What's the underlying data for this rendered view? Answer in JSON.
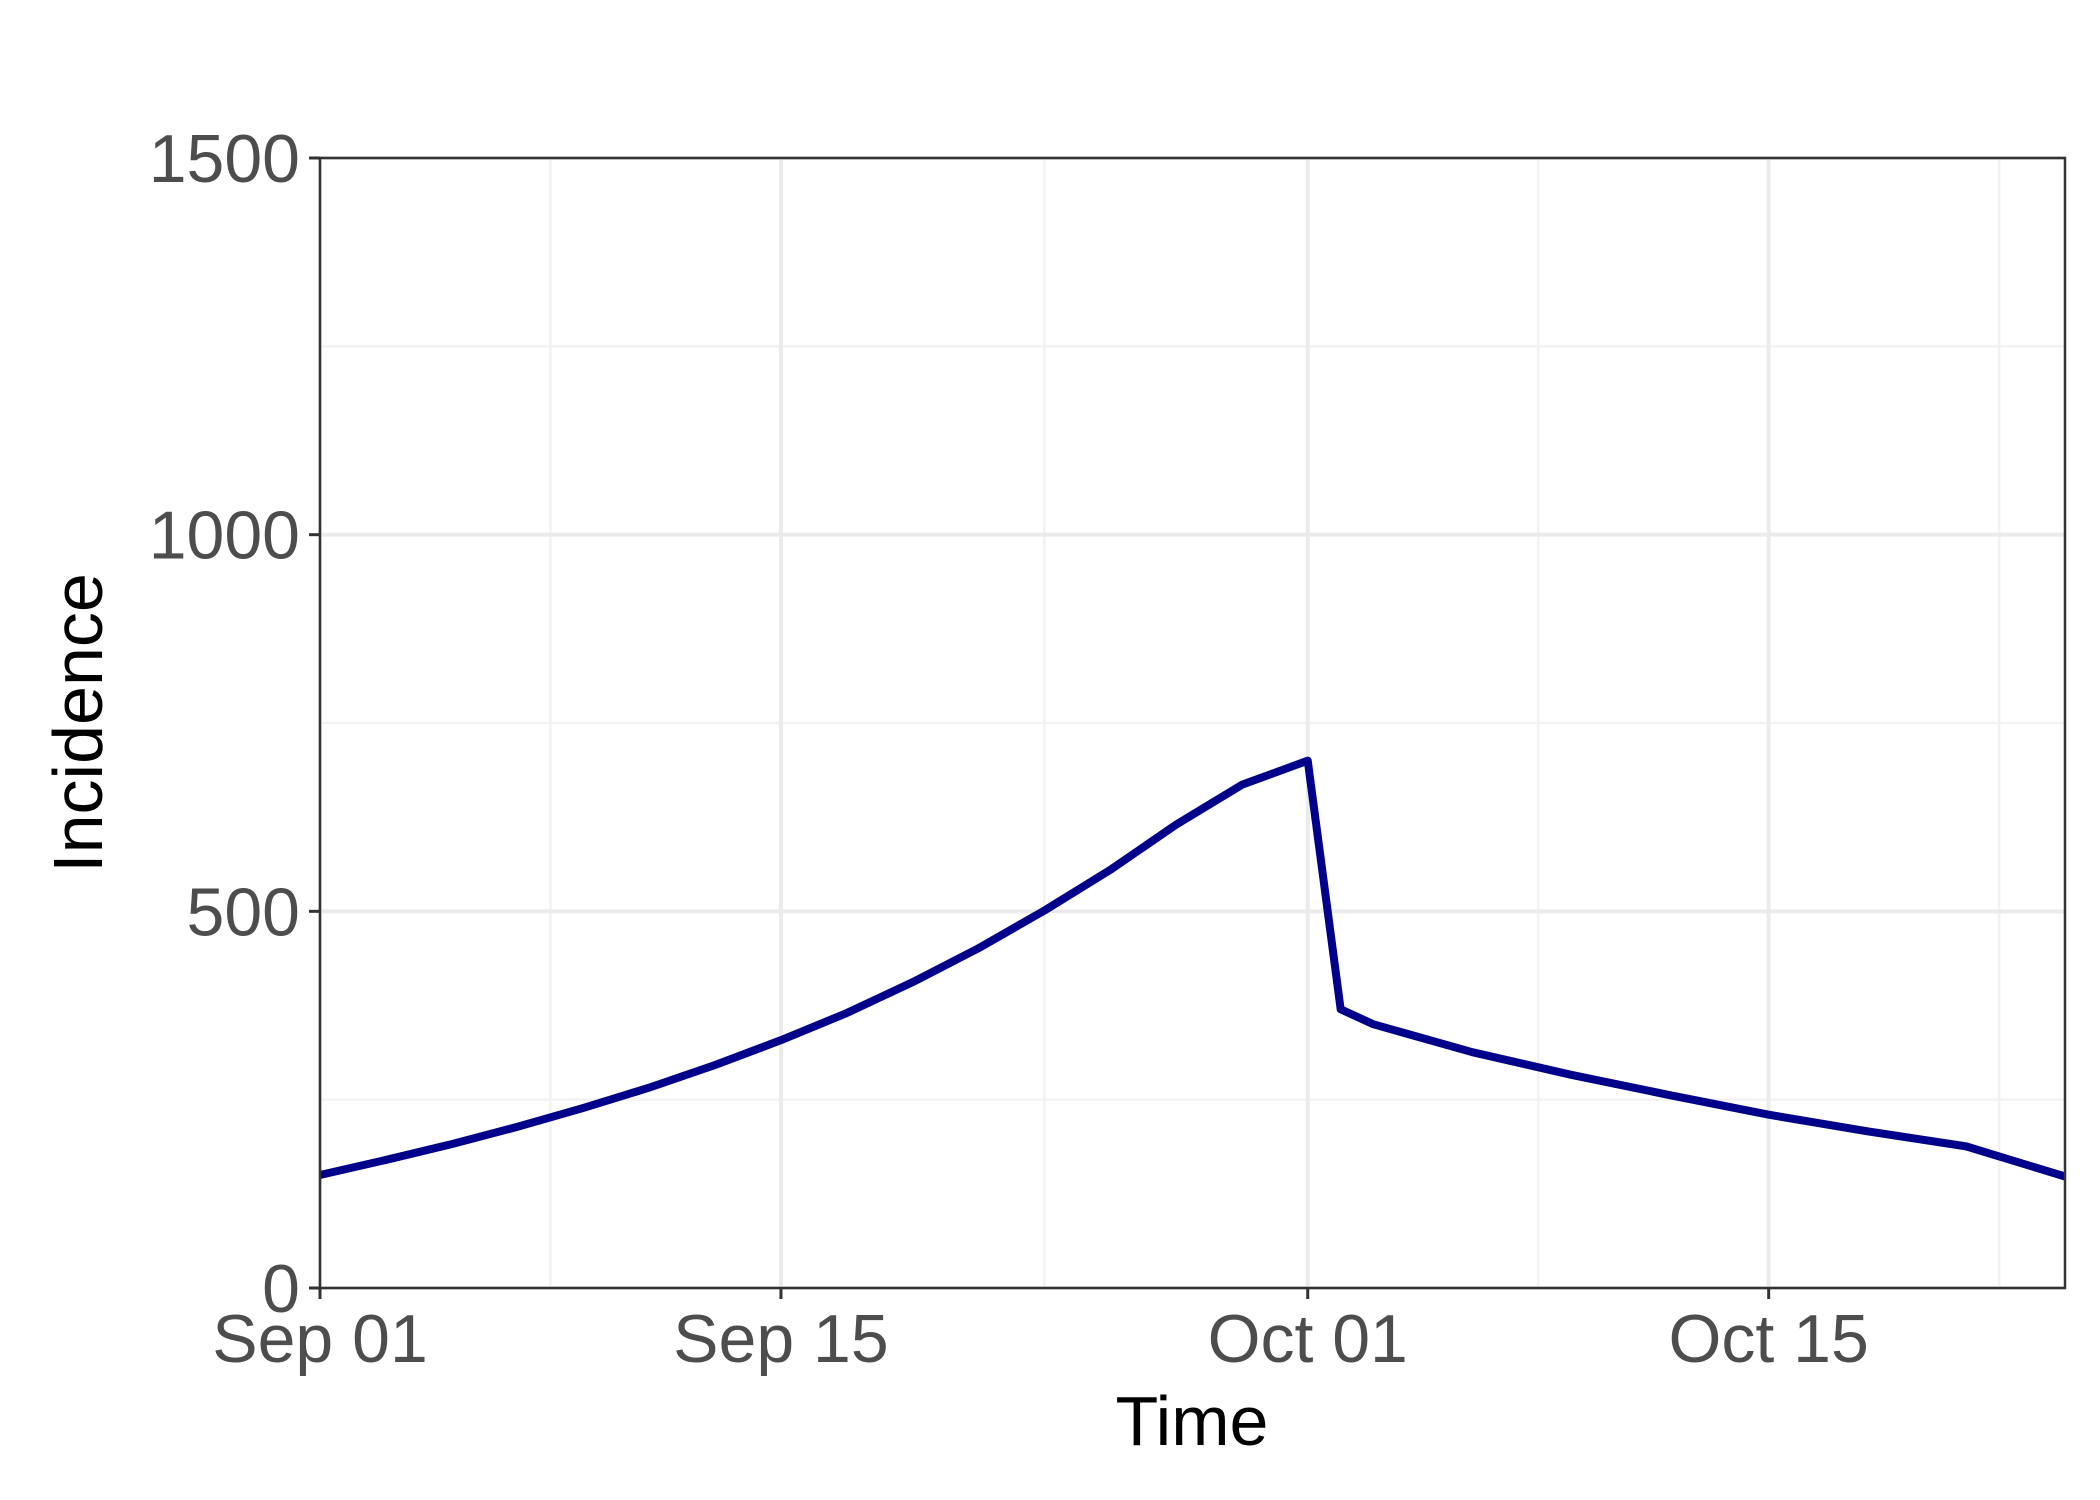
{
  "chart_data": {
    "type": "line",
    "xlabel": "Time",
    "ylabel": "Incidence",
    "x_ticks": [
      {
        "date": "2024-09-01",
        "label": "Sep 01"
      },
      {
        "date": "2024-09-15",
        "label": "Sep 15"
      },
      {
        "date": "2024-10-01",
        "label": "Oct 01"
      },
      {
        "date": "2024-10-15",
        "label": "Oct 15"
      }
    ],
    "y_ticks": [
      {
        "value": 0,
        "label": "0"
      },
      {
        "value": 500,
        "label": "500"
      },
      {
        "value": 1000,
        "label": "1000"
      },
      {
        "value": 1500,
        "label": "1500"
      }
    ],
    "xlim": [
      "2024-09-01",
      "2024-10-24"
    ],
    "ylim": [
      0,
      1500
    ],
    "grid": true,
    "line_color": "#00008b",
    "series": [
      {
        "points": [
          {
            "x": "2024-09-01",
            "y": 150
          },
          {
            "x": "2024-09-03",
            "y": 170
          },
          {
            "x": "2024-09-05",
            "y": 191
          },
          {
            "x": "2024-09-07",
            "y": 214
          },
          {
            "x": "2024-09-09",
            "y": 239
          },
          {
            "x": "2024-09-11",
            "y": 266
          },
          {
            "x": "2024-09-13",
            "y": 296
          },
          {
            "x": "2024-09-15",
            "y": 329
          },
          {
            "x": "2024-09-17",
            "y": 365
          },
          {
            "x": "2024-09-19",
            "y": 406
          },
          {
            "x": "2024-09-21",
            "y": 451
          },
          {
            "x": "2024-09-23",
            "y": 501
          },
          {
            "x": "2024-09-25",
            "y": 555
          },
          {
            "x": "2024-09-27",
            "y": 615
          },
          {
            "x": "2024-09-29",
            "y": 668
          },
          {
            "x": "2024-10-01",
            "y": 700
          },
          {
            "x": "2024-10-02",
            "y": 370
          },
          {
            "x": "2024-10-03",
            "y": 350
          },
          {
            "x": "2024-10-06",
            "y": 313
          },
          {
            "x": "2024-10-09",
            "y": 283
          },
          {
            "x": "2024-10-12",
            "y": 256
          },
          {
            "x": "2024-10-15",
            "y": 230
          },
          {
            "x": "2024-10-18",
            "y": 208
          },
          {
            "x": "2024-10-21",
            "y": 188
          },
          {
            "x": "2024-10-24",
            "y": 148
          }
        ]
      }
    ]
  }
}
